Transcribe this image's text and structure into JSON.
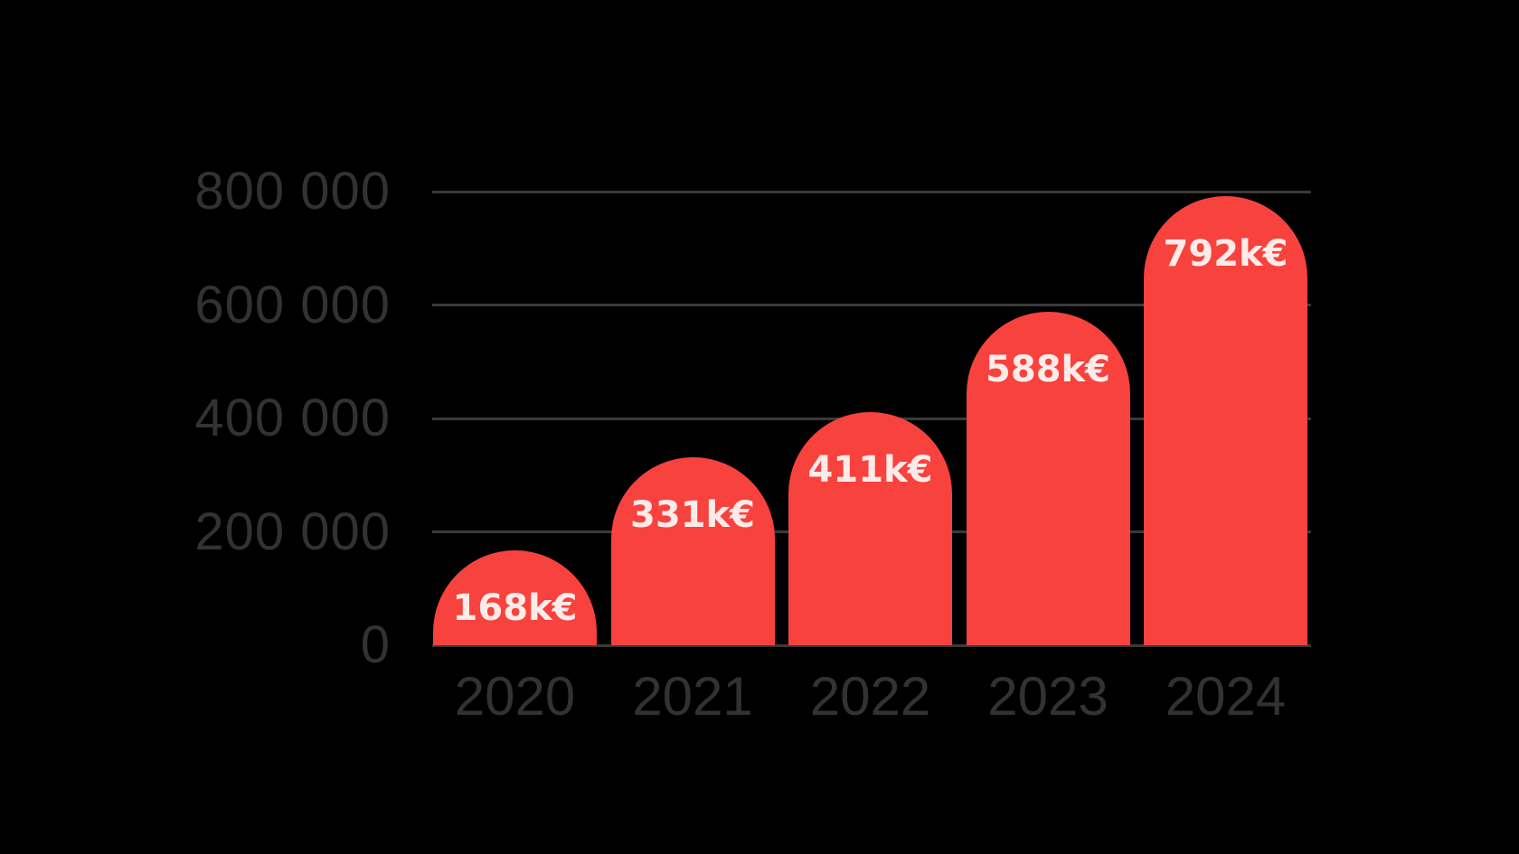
{
  "chart_data": {
    "type": "bar",
    "title": "",
    "xlabel": "",
    "ylabel": "",
    "categories": [
      "2020",
      "2021",
      "2022",
      "2023",
      "2024"
    ],
    "values": [
      168000,
      331000,
      411000,
      588000,
      792000
    ],
    "bar_labels": [
      "168k€",
      "331k€",
      "411k€",
      "588k€",
      "792k€"
    ],
    "currency_unit": "k€",
    "yticks": [
      {
        "value": 0,
        "label": "0"
      },
      {
        "value": 200000,
        "label": "200 000"
      },
      {
        "value": 400000,
        "label": "400 000"
      },
      {
        "value": 600000,
        "label": "600 000"
      },
      {
        "value": 800000,
        "label": "800 000"
      }
    ],
    "ylim": [
      0,
      800000
    ],
    "grid": true,
    "legend": false,
    "bar_shape": "rounded-top",
    "colors": {
      "background": "#000000",
      "bar": "#f8423d",
      "bar_label_text": "#fcebe9",
      "axis_text": "#323232",
      "gridline": "#3a3a3a"
    }
  }
}
